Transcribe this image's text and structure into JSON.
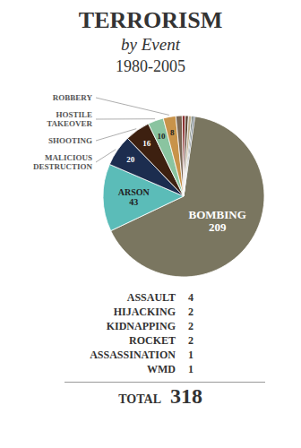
{
  "chart_data": {
    "type": "pie",
    "title": "TERRORISM",
    "subtitle": "by Event",
    "annotations": [
      "1980-2005",
      {
        "label": "TOTAL",
        "value": 318
      }
    ],
    "categories": [
      "BOMBING",
      "ARSON",
      "MALICIOUS DESTRUCTION",
      "SHOOTING",
      "HOSTILE TAKEOVER",
      "ROBBERY",
      "ASSAULT",
      "HIJACKING",
      "KIDNAPPING",
      "ROCKET",
      "ASSASSINATION",
      "WMD"
    ],
    "values": [
      209,
      43,
      20,
      16,
      10,
      8,
      4,
      2,
      2,
      2,
      1,
      1
    ],
    "colors": [
      "#7a7660",
      "#5bbcb8",
      "#1c2d4f",
      "#3d2010",
      "#8ac4a0",
      "#c8934a",
      "#7a6855",
      "#8b3030",
      "#5a4535",
      "#c0b090",
      "#2a3a28",
      "#3a4a5a"
    ],
    "data_labels": true
  }
}
